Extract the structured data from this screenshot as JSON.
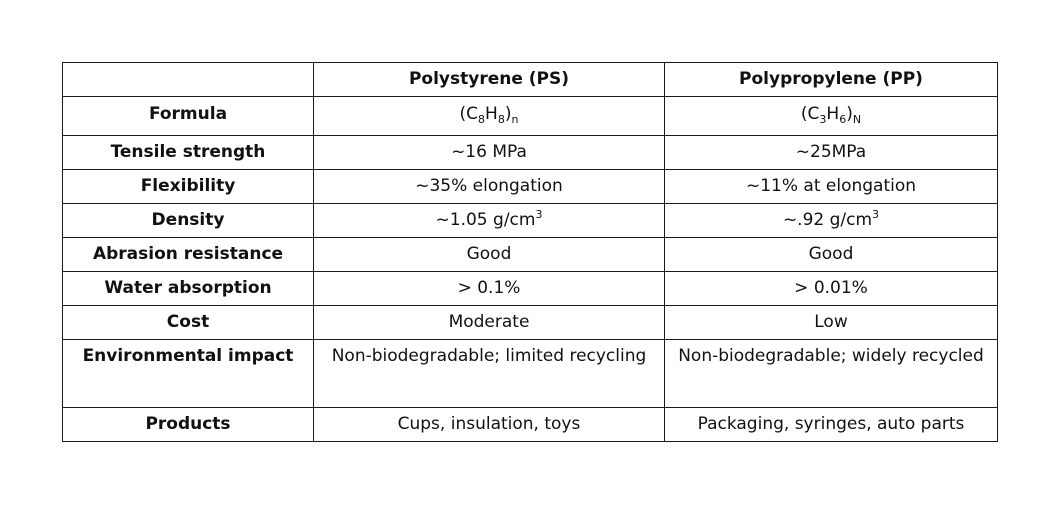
{
  "table": {
    "headers": [
      "",
      "Polystyrene (PS)",
      "Polypropylene (PP)"
    ],
    "rows": [
      {
        "label": "Formula",
        "ps": {
          "pre": "(C",
          "s1": "8",
          "mid": "H",
          "s2": "8",
          "post": ")",
          "s3": "n"
        },
        "pp": {
          "pre": "(C",
          "s1": "3",
          "mid": "H",
          "s2": "6",
          "post": ")",
          "s3": "N"
        }
      },
      {
        "label": "Tensile strength",
        "ps": "~16 MPa",
        "pp": "~25MPa"
      },
      {
        "label": "Flexibility",
        "ps": "~35% elongation",
        "pp": "~11% at elongation"
      },
      {
        "label": "Density",
        "ps": {
          "text": "~1.05 g/cm",
          "sup": "3"
        },
        "pp": {
          "text": "~.92 g/cm",
          "sup": "3"
        }
      },
      {
        "label": "Abrasion resistance",
        "ps": "Good",
        "pp": "Good"
      },
      {
        "label": "Water absorption",
        "ps": "> 0.1%",
        "pp": "> 0.01%"
      },
      {
        "label": "Cost",
        "ps": "Moderate",
        "pp": "Low"
      },
      {
        "label": "Environmental impact",
        "ps": "Non-biodegradable; limited recycling",
        "pp": "Non-biodegradable; widely recycled"
      },
      {
        "label": "Products",
        "ps": "Cups, insulation, toys",
        "pp": "Packaging, syringes, auto parts"
      }
    ]
  }
}
